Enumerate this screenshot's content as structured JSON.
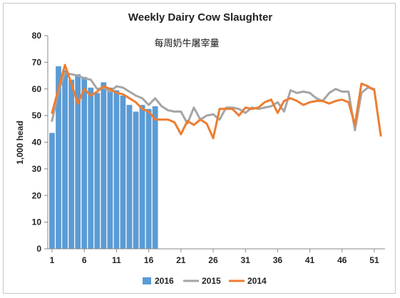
{
  "chart_data": {
    "type": "bar",
    "title": "Weekly Dairy Cow Slaughter",
    "subtitle": "每周奶牛屠宰量",
    "xlabel": "",
    "ylabel": "1,000 head",
    "ylim": [
      0,
      80
    ],
    "yticks": [
      0,
      10,
      20,
      30,
      40,
      50,
      60,
      70,
      80
    ],
    "xlim": [
      1,
      52
    ],
    "xticks": [
      1,
      6,
      11,
      16,
      21,
      26,
      31,
      36,
      41,
      46,
      51
    ],
    "grid": false,
    "legend_position": "bottom",
    "series": [
      {
        "name": "2016",
        "kind": "bar",
        "color": "#5b9bd5",
        "x": [
          1,
          2,
          3,
          4,
          5,
          6,
          7,
          8,
          9,
          10,
          11,
          12,
          13,
          14,
          15,
          16,
          17
        ],
        "values": [
          43.5,
          68.5,
          67,
          63.5,
          65.5,
          64.5,
          60.5,
          58.5,
          62.5,
          60.5,
          59.5,
          57.5,
          54,
          51.5,
          54,
          52.5,
          53.5
        ]
      },
      {
        "name": "2015",
        "kind": "line",
        "color": "#a5a5a5",
        "x": [
          1,
          2,
          3,
          4,
          5,
          6,
          7,
          8,
          9,
          10,
          11,
          12,
          13,
          14,
          15,
          16,
          17,
          18,
          19,
          20,
          21,
          22,
          23,
          24,
          25,
          26,
          27,
          28,
          29,
          30,
          31,
          32,
          33,
          34,
          35,
          36,
          37,
          38,
          39,
          40,
          41,
          42,
          43,
          44,
          45,
          46,
          47,
          48,
          49,
          50,
          51
        ],
        "values": [
          48,
          59,
          66,
          65.5,
          65,
          64,
          63.5,
          60,
          60.5,
          59,
          61,
          60.5,
          59,
          57.5,
          56.5,
          54,
          56.5,
          53.5,
          52,
          51.5,
          51.5,
          47,
          53,
          48.5,
          50,
          50.5,
          48.5,
          53,
          53,
          52.5,
          51,
          53,
          52.5,
          53,
          53.5,
          55,
          51.5,
          59.5,
          58.5,
          59,
          58.5,
          56.5,
          55.5,
          58.5,
          60,
          59,
          59,
          44.5,
          58.5,
          60.5,
          60
        ]
      },
      {
        "name": "2014",
        "kind": "line",
        "color": "#ed7d31",
        "x": [
          1,
          2,
          3,
          4,
          5,
          6,
          7,
          8,
          9,
          10,
          11,
          12,
          13,
          14,
          15,
          16,
          17,
          18,
          19,
          20,
          21,
          22,
          23,
          24,
          25,
          26,
          27,
          28,
          29,
          30,
          31,
          32,
          33,
          34,
          35,
          36,
          37,
          38,
          39,
          40,
          41,
          42,
          43,
          44,
          45,
          46,
          47,
          48,
          49,
          50,
          51,
          52
        ],
        "values": [
          51,
          60,
          69,
          62,
          54.5,
          60,
          57.5,
          59,
          61,
          60,
          58.5,
          58,
          56.5,
          55,
          52.5,
          51.5,
          48.5,
          48.5,
          48.5,
          47.5,
          43,
          48,
          46.5,
          48.5,
          47,
          41.5,
          52.5,
          52.5,
          52.5,
          50,
          53,
          52.5,
          53,
          55,
          56,
          51,
          55.5,
          56.5,
          55.5,
          54,
          55,
          55.5,
          55.5,
          54.5,
          55.5,
          56,
          55,
          46.5,
          62,
          61,
          59.5,
          42.5
        ]
      }
    ]
  }
}
